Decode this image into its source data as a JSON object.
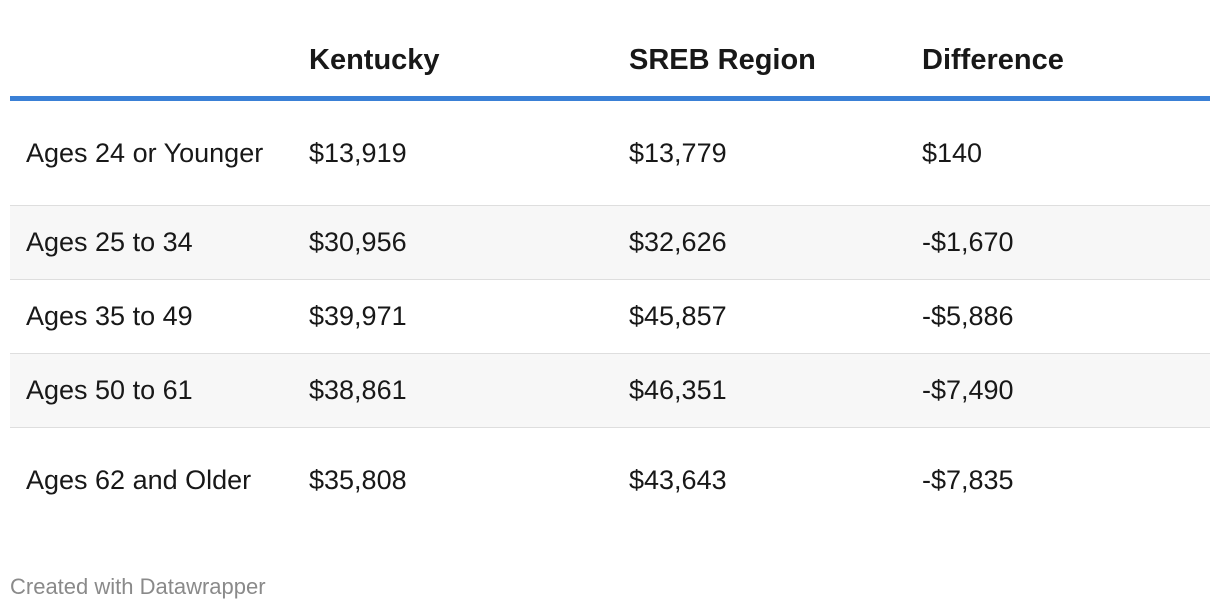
{
  "chart_data": {
    "type": "table",
    "columns": [
      "",
      "Kentucky",
      "SREB Region",
      "Difference"
    ],
    "rows": [
      {
        "label": "Ages 24 or Younger",
        "kentucky": "$13,919",
        "sreb": "$13,779",
        "difference": "$140"
      },
      {
        "label": "Ages 25 to 34",
        "kentucky": "$30,956",
        "sreb": "$32,626",
        "difference": "-$1,670"
      },
      {
        "label": "Ages 35 to 49",
        "kentucky": "$39,971",
        "sreb": "$45,857",
        "difference": "-$5,886"
      },
      {
        "label": "Ages 50 to 61",
        "kentucky": "$38,861",
        "sreb": "$46,351",
        "difference": "-$7,490"
      },
      {
        "label": "Ages 62 and Older",
        "kentucky": "$35,808",
        "sreb": "$43,643",
        "difference": "-$7,835"
      }
    ],
    "values": {
      "kentucky": [
        13919,
        30956,
        39971,
        38861,
        35808
      ],
      "sreb_region": [
        13779,
        32626,
        45857,
        46351,
        43643
      ],
      "difference": [
        140,
        -1670,
        -5886,
        -7490,
        -7835
      ]
    }
  },
  "footer": "Created with Datawrapper",
  "colors": {
    "header_rule": "#3a80d6",
    "stripe": "#f7f7f7",
    "footer_text": "#8a8a8a"
  }
}
